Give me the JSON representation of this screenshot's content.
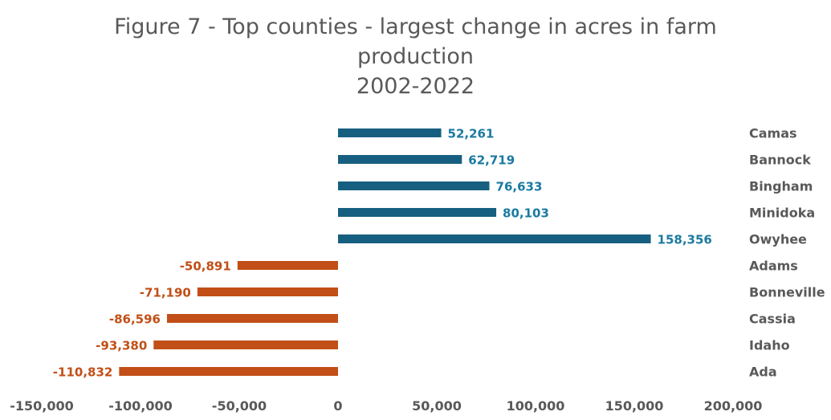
{
  "chart_data": {
    "type": "bar",
    "orientation": "horizontal",
    "title_lines": [
      "Figure 7 - Top counties - largest change in acres in farm",
      "production",
      "2002-2022"
    ],
    "categories": [
      "Camas",
      "Bannock",
      "Bingham",
      "Minidoka",
      "Owyhee",
      "Adams",
      "Bonneville",
      "Cassia",
      "Idaho",
      "Ada"
    ],
    "values": [
      52261,
      62719,
      76633,
      80103,
      158356,
      -50891,
      -71190,
      -86596,
      -93380,
      -110832
    ],
    "data_labels": [
      "52,261",
      "62,719",
      "76,633",
      "80,103",
      "158,356",
      "-50,891",
      "-71,190",
      "-86,596",
      "-93,380",
      "-110,832"
    ],
    "xlim": [
      -150000,
      200000
    ],
    "xticks": [
      -150000,
      -100000,
      -50000,
      0,
      50000,
      100000,
      150000,
      200000
    ],
    "xtick_labels": [
      "-150,000",
      "-100,000",
      "-50,000",
      "0",
      "50,000",
      "100,000",
      "150,000",
      "200,000"
    ],
    "grid": false,
    "colors": {
      "positive_bar": "#175f80",
      "positive_label": "#1a7a9f",
      "negative_bar": "#c14f17",
      "negative_label": "#c14f17"
    }
  }
}
